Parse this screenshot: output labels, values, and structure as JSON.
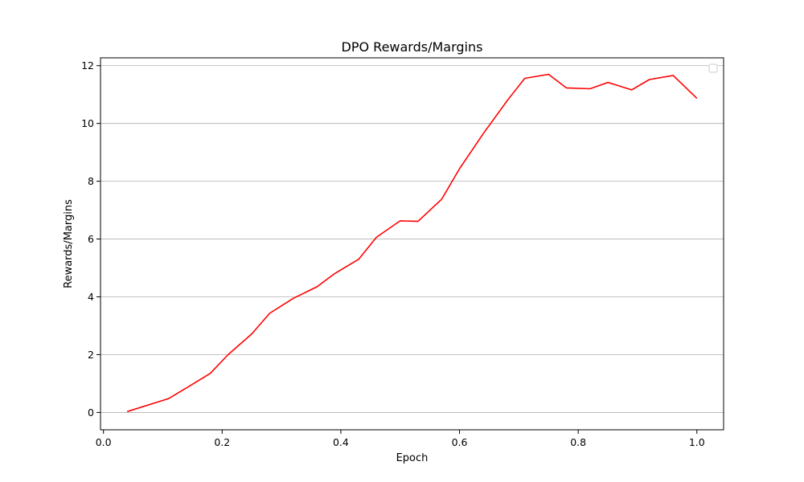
{
  "chart_data": {
    "type": "line",
    "title": "DPO Rewards/Margins",
    "xlabel": "Epoch",
    "ylabel": "Rewards/Margins",
    "xlim": [
      -0.005,
      1.045
    ],
    "ylim": [
      -0.6,
      12.27
    ],
    "xticks": [
      0.0,
      0.2,
      0.4,
      0.6,
      0.8,
      1.0
    ],
    "xtick_labels": [
      "0.0",
      "0.2",
      "0.4",
      "0.6",
      "0.8",
      "1.0"
    ],
    "yticks": [
      0,
      2,
      4,
      6,
      8,
      10,
      12
    ],
    "ytick_labels": [
      "0",
      "2",
      "4",
      "6",
      "8",
      "10",
      "12"
    ],
    "grid": "horizontal",
    "legend": "top-right",
    "series": [
      {
        "color": "#ff0000",
        "x": [
          0.04,
          0.11,
          0.14,
          0.18,
          0.21,
          0.25,
          0.28,
          0.32,
          0.36,
          0.39,
          0.43,
          0.46,
          0.5,
          0.53,
          0.57,
          0.6,
          0.64,
          0.68,
          0.71,
          0.75,
          0.78,
          0.82,
          0.85,
          0.89,
          0.92,
          0.96,
          1.0
        ],
        "y": [
          0.03,
          0.48,
          0.85,
          1.35,
          2.0,
          2.72,
          3.43,
          3.95,
          4.35,
          4.81,
          5.3,
          6.06,
          6.63,
          6.61,
          7.38,
          8.43,
          9.65,
          10.78,
          11.56,
          11.7,
          11.23,
          11.2,
          11.42,
          11.16,
          11.52,
          11.66,
          10.87
        ]
      }
    ]
  }
}
